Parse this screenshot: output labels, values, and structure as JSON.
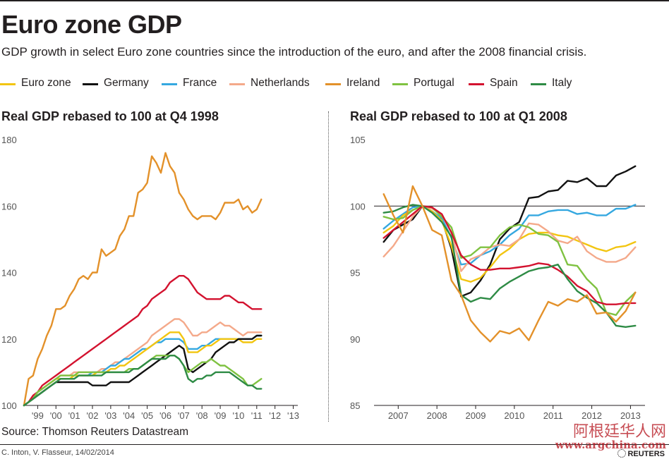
{
  "header": {
    "title": "Euro zone GDP",
    "subtitle": "GDP growth in select Euro zone countries since the introduction of the euro, and after the 2008 financial crisis."
  },
  "legend": [
    {
      "name": "Euro zone",
      "color": "#f2c511"
    },
    {
      "name": "Germany",
      "color": "#111111"
    },
    {
      "name": "France",
      "color": "#35a8e0"
    },
    {
      "name": "Netherlands",
      "color": "#f4a98a"
    },
    {
      "name": "Ireland",
      "color": "#e3912a"
    },
    {
      "name": "Portugal",
      "color": "#7fc241"
    },
    {
      "name": "Spain",
      "color": "#d3122f"
    },
    {
      "name": "Italy",
      "color": "#2e8b45"
    }
  ],
  "footer": {
    "source": "Source: Thomson Reuters Datastream",
    "credit": "C. Inton, V. Flasseur, 14/02/2014",
    "brand": "REUTERS",
    "watermark_cn": "阿根廷华人网",
    "watermark_url": "www.argchina.com"
  },
  "chart_data": [
    {
      "type": "line",
      "title": "Real GDP rebased to 100 at Q4 1998",
      "xlabel": "",
      "ylabel": "",
      "ylim": [
        100,
        180
      ],
      "yticks": [
        100,
        120,
        140,
        160,
        180
      ],
      "xlim": [
        1998.75,
        2013.75
      ],
      "xticks": [
        {
          "label": "'99",
          "x": 1999.5
        },
        {
          "label": "'00",
          "x": 2000.5
        },
        {
          "label": "'01",
          "x": 2001.5
        },
        {
          "label": "'02",
          "x": 2002.5
        },
        {
          "label": "'03",
          "x": 2003.5
        },
        {
          "label": "'04",
          "x": 2004.5
        },
        {
          "label": "'05",
          "x": 2005.5
        },
        {
          "label": "'06",
          "x": 2006.5
        },
        {
          "label": "'07",
          "x": 2007.5
        },
        {
          "label": "'08",
          "x": 2008.5
        },
        {
          "label": "'09",
          "x": 2009.5
        },
        {
          "label": "'10",
          "x": 2010.5
        },
        {
          "label": "'11",
          "x": 2011.5
        },
        {
          "label": "'12",
          "x": 2012.5
        },
        {
          "label": "'13",
          "x": 2013.5
        }
      ],
      "x_start": 1998.75,
      "x_step": 0.25,
      "series": [
        {
          "name": "Ireland",
          "values": [
            100,
            108,
            109,
            114,
            117,
            121,
            124,
            129,
            129,
            130,
            133,
            135,
            138,
            139,
            138,
            140,
            140,
            147,
            145,
            146,
            147,
            151,
            153,
            157,
            157,
            164,
            165,
            167,
            175,
            173,
            170,
            176,
            172,
            170,
            164,
            162,
            159,
            157,
            156,
            157,
            157,
            157,
            156,
            158,
            161,
            161,
            161,
            162,
            159,
            160,
            158,
            159,
            162
          ]
        },
        {
          "name": "Spain",
          "values": [
            100,
            101,
            103,
            104,
            106,
            107,
            108,
            109,
            110,
            111,
            112,
            113,
            114,
            115,
            116,
            117,
            118,
            119,
            120,
            121,
            122,
            123,
            124,
            125,
            126,
            127,
            129,
            130,
            132,
            133,
            134,
            135,
            137,
            138,
            139,
            139,
            138,
            136,
            134,
            133,
            132,
            132,
            132,
            132,
            133,
            133,
            132,
            131,
            131,
            130,
            129,
            129,
            129
          ]
        },
        {
          "name": "Netherlands",
          "values": [
            100,
            101,
            102,
            104,
            105,
            106,
            107,
            108,
            109,
            109,
            109,
            110,
            110,
            110,
            110,
            110,
            110,
            111,
            111,
            112,
            113,
            113,
            114,
            115,
            116,
            117,
            118,
            119,
            121,
            122,
            123,
            124,
            125,
            126,
            126,
            125,
            123,
            121,
            121,
            122,
            122,
            123,
            124,
            125,
            124,
            124,
            123,
            122,
            121,
            122,
            122,
            122,
            122
          ]
        },
        {
          "name": "France",
          "values": [
            100,
            101,
            102,
            104,
            105,
            106,
            107,
            108,
            108,
            108,
            108,
            108,
            109,
            109,
            109,
            110,
            110,
            110,
            111,
            112,
            112,
            113,
            114,
            114,
            115,
            116,
            117,
            117,
            118,
            119,
            119,
            120,
            120,
            120,
            120,
            119,
            117,
            117,
            117,
            118,
            118,
            119,
            120,
            120,
            120,
            120,
            120,
            120,
            120,
            120,
            120,
            121,
            121
          ]
        },
        {
          "name": "Euro zone",
          "values": [
            100,
            101,
            102,
            104,
            105,
            106,
            107,
            108,
            108,
            108,
            108,
            109,
            109,
            109,
            109,
            109,
            110,
            110,
            110,
            111,
            111,
            112,
            112,
            113,
            114,
            115,
            116,
            117,
            118,
            119,
            120,
            121,
            122,
            122,
            122,
            120,
            116,
            116,
            116,
            117,
            118,
            118,
            119,
            120,
            120,
            120,
            120,
            120,
            119,
            119,
            119,
            120,
            120
          ]
        },
        {
          "name": "Germany",
          "values": [
            100,
            101,
            102,
            103,
            104,
            105,
            106,
            107,
            107,
            107,
            107,
            107,
            107,
            107,
            107,
            106,
            106,
            106,
            106,
            107,
            107,
            107,
            107,
            107,
            108,
            109,
            110,
            111,
            112,
            113,
            114,
            115,
            116,
            117,
            118,
            117,
            111,
            110,
            111,
            112,
            113,
            114,
            116,
            117,
            118,
            119,
            119,
            120,
            120,
            120,
            120,
            121,
            121
          ]
        },
        {
          "name": "Portugal",
          "values": [
            100,
            101,
            102,
            104,
            105,
            106,
            107,
            108,
            109,
            109,
            109,
            109,
            110,
            110,
            110,
            110,
            110,
            110,
            110,
            110,
            110,
            110,
            110,
            111,
            111,
            111,
            112,
            113,
            114,
            115,
            115,
            115,
            115,
            115,
            114,
            112,
            110,
            111,
            112,
            113,
            113,
            114,
            113,
            112,
            112,
            111,
            110,
            109,
            108,
            106,
            106,
            107,
            108
          ]
        },
        {
          "name": "Italy",
          "values": [
            100,
            101,
            102,
            103,
            104,
            105,
            106,
            107,
            108,
            108,
            108,
            108,
            109,
            109,
            109,
            109,
            109,
            109,
            110,
            110,
            110,
            110,
            110,
            110,
            111,
            111,
            112,
            113,
            114,
            114,
            114,
            114,
            115,
            115,
            114,
            112,
            108,
            107,
            108,
            108,
            109,
            109,
            110,
            110,
            110,
            110,
            109,
            108,
            107,
            106,
            106,
            105,
            105
          ]
        }
      ]
    },
    {
      "type": "line",
      "title": "Real GDP rebased to 100 at Q1 2008",
      "xlabel": "",
      "ylabel": "",
      "ylim": [
        85,
        105
      ],
      "yticks": [
        85,
        90,
        95,
        100,
        105
      ],
      "reference_line": 100,
      "xlim": [
        2006.75,
        2013.75
      ],
      "xticks": [
        {
          "label": "2007",
          "x": 2007.375
        },
        {
          "label": "2008",
          "x": 2008.375
        },
        {
          "label": "2009",
          "x": 2009.375
        },
        {
          "label": "2010",
          "x": 2010.375
        },
        {
          "label": "2011",
          "x": 2011.375
        },
        {
          "label": "2012",
          "x": 2012.375
        },
        {
          "label": "2013",
          "x": 2013.375
        }
      ],
      "x_start": 2007.0,
      "x_step": 0.25,
      "series": [
        {
          "name": "Germany",
          "values": [
            97.3,
            98.2,
            98.6,
            99.0,
            100.0,
            99.6,
            99.0,
            96.8,
            93.2,
            93.5,
            94.4,
            95.6,
            97.5,
            98.3,
            98.8,
            100.6,
            100.7,
            101.1,
            101.2,
            101.9,
            101.8,
            102.1,
            101.5,
            101.5,
            102.3,
            102.6,
            103.0
          ]
        },
        {
          "name": "France",
          "values": [
            98.3,
            98.9,
            99.4,
            99.9,
            100.0,
            99.6,
            99.1,
            97.6,
            95.6,
            95.7,
            96.3,
            96.6,
            97.1,
            97.8,
            98.3,
            99.3,
            99.3,
            99.6,
            99.7,
            99.7,
            99.4,
            99.5,
            99.3,
            99.3,
            99.8,
            99.8,
            100.1
          ]
        },
        {
          "name": "Euro zone",
          "values": [
            98.0,
            98.5,
            99.3,
            99.7,
            100.0,
            99.6,
            98.9,
            97.0,
            94.5,
            94.3,
            94.6,
            95.4,
            96.3,
            96.8,
            97.5,
            97.9,
            98.0,
            98.0,
            97.8,
            97.7,
            97.4,
            97.1,
            96.8,
            96.6,
            96.9,
            97.0,
            97.3
          ]
        },
        {
          "name": "Netherlands",
          "values": [
            96.2,
            97.0,
            98.1,
            99.2,
            100.0,
            99.8,
            99.4,
            98.0,
            95.1,
            96.0,
            96.3,
            96.9,
            97.1,
            97.0,
            97.5,
            98.7,
            98.6,
            98.1,
            97.4,
            97.2,
            97.7,
            96.6,
            96.1,
            95.8,
            95.8,
            96.1,
            96.9
          ]
        },
        {
          "name": "Portugal",
          "values": [
            99.2,
            99.0,
            99.1,
            99.7,
            100.0,
            99.9,
            99.2,
            98.4,
            96.1,
            96.3,
            96.9,
            96.9,
            97.8,
            98.4,
            98.6,
            98.4,
            97.9,
            97.8,
            97.3,
            95.6,
            95.5,
            94.5,
            93.8,
            92.0,
            91.8,
            92.8,
            93.5
          ]
        },
        {
          "name": "Spain",
          "values": [
            97.6,
            98.2,
            98.8,
            99.4,
            100.0,
            99.9,
            99.4,
            98.0,
            96.3,
            95.6,
            95.2,
            95.2,
            95.3,
            95.3,
            95.4,
            95.5,
            95.7,
            95.6,
            95.2,
            94.7,
            94.0,
            93.6,
            92.8,
            92.6,
            92.6,
            92.7,
            92.7
          ]
        },
        {
          "name": "Italy",
          "values": [
            99.5,
            99.6,
            99.9,
            100.1,
            100.0,
            99.5,
            98.8,
            97.7,
            93.3,
            92.8,
            93.1,
            93.0,
            93.8,
            94.3,
            94.7,
            95.1,
            95.3,
            95.4,
            95.6,
            94.5,
            93.6,
            93.1,
            92.7,
            92.0,
            91.0,
            90.9,
            91.0
          ]
        },
        {
          "name": "Ireland",
          "values": [
            100.9,
            99.3,
            98.0,
            101.5,
            100.0,
            98.2,
            97.8,
            94.4,
            93.3,
            91.4,
            90.5,
            89.8,
            90.6,
            90.4,
            90.8,
            89.9,
            91.4,
            92.8,
            92.5,
            93.0,
            92.8,
            93.3,
            91.9,
            92.0,
            91.3,
            92.1,
            93.5
          ]
        }
      ]
    }
  ]
}
